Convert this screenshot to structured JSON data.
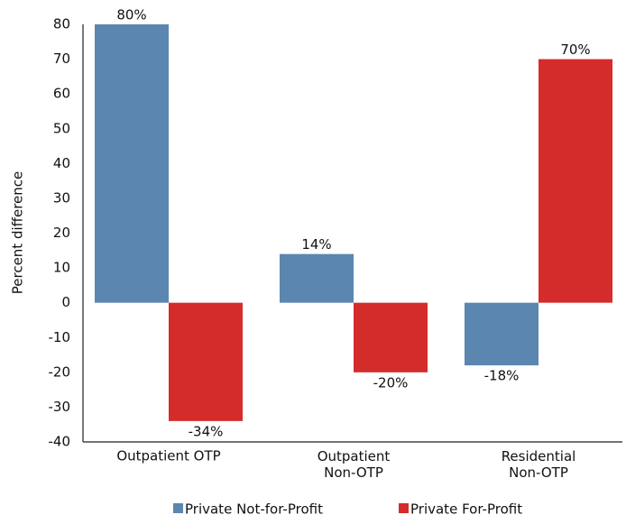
{
  "chart_data": {
    "type": "bar",
    "y_label": "Percent difference",
    "categories": [
      "Outpatient OTP",
      "Outpatient\nNon-OTP",
      "Residential\nNon-OTP"
    ],
    "series": [
      {
        "name": "Private Not-for-Profit",
        "color": "#5b86b0",
        "values": [
          80,
          14,
          -18
        ],
        "value_labels": [
          "80%",
          "14%",
          "-18%"
        ]
      },
      {
        "name": "Private For-Profit",
        "color": "#d42c2a",
        "values": [
          -34,
          -20,
          70
        ],
        "value_labels": [
          "-34%",
          "-20%",
          "70%"
        ]
      }
    ],
    "ylim": [
      -40,
      80
    ],
    "yticks": [
      -40,
      -30,
      -20,
      -10,
      0,
      10,
      20,
      30,
      40,
      50,
      60,
      70,
      80
    ],
    "grid": false
  }
}
